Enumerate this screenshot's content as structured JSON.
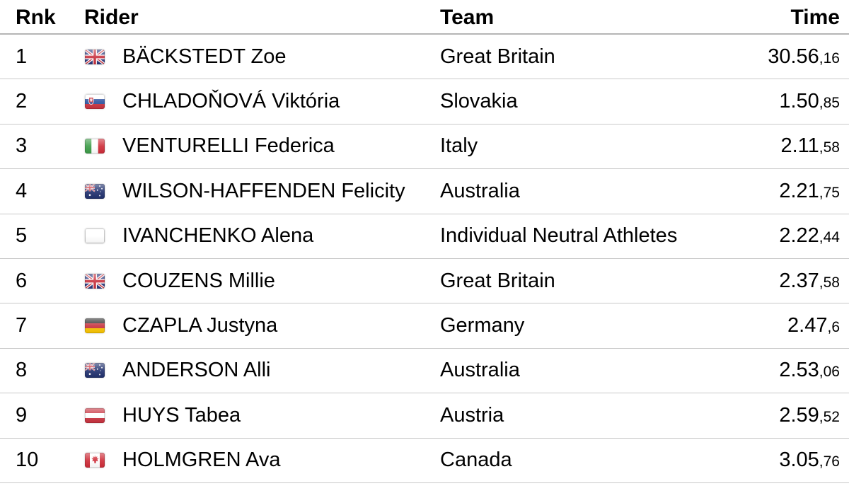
{
  "table": {
    "columns": [
      {
        "key": "rank",
        "label": "Rnk"
      },
      {
        "key": "rider",
        "label": "Rider"
      },
      {
        "key": "team",
        "label": "Team"
      },
      {
        "key": "time",
        "label": "Time"
      }
    ],
    "rows": [
      {
        "rank": "1",
        "flag": "gb",
        "rider": "BÄCKSTEDT Zoe",
        "team": "Great Britain",
        "time_main": "30.56",
        "time_frac": ",16"
      },
      {
        "rank": "2",
        "flag": "sk",
        "rider": "CHLADOŇOVÁ Viktória",
        "team": "Slovakia",
        "time_main": "1.50",
        "time_frac": ",85"
      },
      {
        "rank": "3",
        "flag": "it",
        "rider": "VENTURELLI Federica",
        "team": "Italy",
        "time_main": "2.11",
        "time_frac": ",58"
      },
      {
        "rank": "4",
        "flag": "au",
        "rider": "WILSON-HAFFENDEN Felicity",
        "team": "Australia",
        "time_main": "2.21",
        "time_frac": ",75"
      },
      {
        "rank": "5",
        "flag": "neutral",
        "rider": "IVANCHENKO Alena",
        "team": "Individual Neutral Athletes",
        "time_main": "2.22",
        "time_frac": ",44"
      },
      {
        "rank": "6",
        "flag": "gb",
        "rider": "COUZENS Millie",
        "team": "Great Britain",
        "time_main": "2.37",
        "time_frac": ",58"
      },
      {
        "rank": "7",
        "flag": "de",
        "rider": "CZAPLA Justyna",
        "team": "Germany",
        "time_main": "2.47",
        "time_frac": ",6"
      },
      {
        "rank": "8",
        "flag": "au",
        "rider": "ANDERSON Alli",
        "team": "Australia",
        "time_main": "2.53",
        "time_frac": ",06"
      },
      {
        "rank": "9",
        "flag": "at",
        "rider": "HUYS Tabea",
        "team": "Austria",
        "time_main": "2.59",
        "time_frac": ",52"
      },
      {
        "rank": "10",
        "flag": "ca",
        "rider": "HOLMGREN Ava",
        "team": "Canada",
        "time_main": "3.05",
        "time_frac": ",76"
      }
    ],
    "colors": {
      "text": "#000000",
      "background": "#ffffff",
      "separator": "#c9c9c9",
      "header_separator": "#b5b5b5"
    }
  }
}
